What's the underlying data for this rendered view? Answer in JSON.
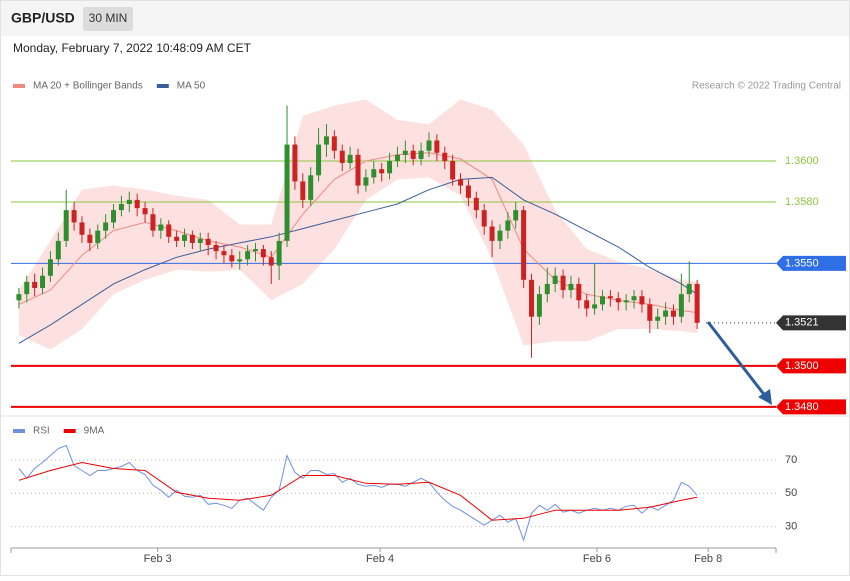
{
  "header": {
    "symbol": "GBP/USD",
    "timeframe": "30 MIN",
    "timestamp": "Monday, February 7, 2022 10:48:09 AM CET"
  },
  "chart_data": [
    {
      "type": "candlestick",
      "source": "Research © 2022 Trading Central",
      "xlim": [
        -1,
        96
      ],
      "ylim": [
        1.3477,
        1.363
      ],
      "up_color": "#2f8f2f",
      "down_color": "#cc2222",
      "candles": {
        "open": [
          1.3532,
          1.3535,
          1.3541,
          1.3538,
          1.3544,
          1.3552,
          1.3561,
          1.3576,
          1.357,
          1.3564,
          1.356,
          1.3566,
          1.357,
          1.3576,
          1.3579,
          1.3581,
          1.3577,
          1.3574,
          1.3566,
          1.3569,
          1.3563,
          1.3561,
          1.3564,
          1.356,
          1.3562,
          1.3559,
          1.3556,
          1.3554,
          1.3551,
          1.3552,
          1.3556,
          1.3557,
          1.3553,
          1.3549,
          1.3561,
          1.3608,
          1.359,
          1.3581,
          1.3593,
          1.3608,
          1.3612,
          1.3605,
          1.3599,
          1.3603,
          1.3588,
          1.3592,
          1.3596,
          1.3594,
          1.36,
          1.3603,
          1.3605,
          1.3601,
          1.3605,
          1.361,
          1.3604,
          1.36,
          1.3591,
          1.3588,
          1.3582,
          1.3576,
          1.3568,
          1.3561,
          1.3566,
          1.3571,
          1.3576,
          1.3542,
          1.3524,
          1.3535,
          1.354,
          1.3544,
          1.3537,
          1.354,
          1.3532,
          1.3528,
          1.353,
          1.3534,
          1.3533,
          1.3531,
          1.3532,
          1.3534,
          1.353,
          1.3522,
          1.3524,
          1.3527,
          1.3524,
          1.3535,
          1.354
        ],
        "high": [
          1.3538,
          1.3544,
          1.3545,
          1.3548,
          1.3556,
          1.3565,
          1.3586,
          1.358,
          1.3573,
          1.3567,
          1.3569,
          1.3574,
          1.3579,
          1.3583,
          1.3585,
          1.3584,
          1.358,
          1.3577,
          1.3572,
          1.3571,
          1.3566,
          1.3567,
          1.3566,
          1.3565,
          1.3565,
          1.3561,
          1.3559,
          1.3557,
          1.3556,
          1.3559,
          1.356,
          1.3559,
          1.3556,
          1.3565,
          1.3627,
          1.3612,
          1.3594,
          1.3597,
          1.3616,
          1.3618,
          1.3615,
          1.3608,
          1.3607,
          1.3606,
          1.3596,
          1.36,
          1.3599,
          1.3604,
          1.3607,
          1.361,
          1.3608,
          1.3609,
          1.3614,
          1.3613,
          1.3607,
          1.3603,
          1.3594,
          1.3591,
          1.3585,
          1.3579,
          1.3571,
          1.3569,
          1.3575,
          1.358,
          1.3578,
          1.3545,
          1.3539,
          1.3548,
          1.3548,
          1.3547,
          1.3544,
          1.3543,
          1.3535,
          1.355,
          1.3537,
          1.3537,
          1.3536,
          1.3535,
          1.3537,
          1.3537,
          1.3533,
          1.3528,
          1.3531,
          1.353,
          1.3545,
          1.3551,
          1.3542
        ],
        "low": [
          1.3528,
          1.3531,
          1.3534,
          1.3535,
          1.3541,
          1.3549,
          1.3558,
          1.3566,
          1.356,
          1.3556,
          1.3557,
          1.3562,
          1.3567,
          1.3573,
          1.3575,
          1.3573,
          1.357,
          1.3563,
          1.3562,
          1.356,
          1.3558,
          1.3558,
          1.3557,
          1.3556,
          1.3554,
          1.3552,
          1.355,
          1.3548,
          1.3547,
          1.3549,
          1.3551,
          1.3549,
          1.354,
          1.3542,
          1.3558,
          1.3586,
          1.3577,
          1.3578,
          1.359,
          1.3602,
          1.3601,
          1.3595,
          1.3596,
          1.3584,
          1.3585,
          1.3589,
          1.359,
          1.3591,
          1.3597,
          1.3599,
          1.3598,
          1.3598,
          1.3602,
          1.36,
          1.3596,
          1.3588,
          1.3584,
          1.3578,
          1.3572,
          1.3564,
          1.3553,
          1.3557,
          1.3562,
          1.3567,
          1.3538,
          1.3504,
          1.352,
          1.3531,
          1.3536,
          1.3533,
          1.3533,
          1.3528,
          1.3524,
          1.3525,
          1.3527,
          1.3529,
          1.3527,
          1.3527,
          1.3528,
          1.3526,
          1.3516,
          1.3518,
          1.352,
          1.352,
          1.3521,
          1.3531,
          1.3518
        ],
        "close": [
          1.3535,
          1.3541,
          1.3538,
          1.3544,
          1.3552,
          1.3561,
          1.3576,
          1.357,
          1.3564,
          1.356,
          1.3566,
          1.357,
          1.3576,
          1.3579,
          1.3581,
          1.3577,
          1.3574,
          1.3566,
          1.3569,
          1.3563,
          1.3561,
          1.3564,
          1.356,
          1.3562,
          1.3559,
          1.3556,
          1.3554,
          1.3551,
          1.3552,
          1.3556,
          1.3557,
          1.3553,
          1.3549,
          1.3561,
          1.3608,
          1.359,
          1.3581,
          1.3593,
          1.3608,
          1.3612,
          1.3605,
          1.3599,
          1.3603,
          1.3588,
          1.3592,
          1.3596,
          1.3594,
          1.36,
          1.3603,
          1.3605,
          1.3601,
          1.3605,
          1.361,
          1.3604,
          1.36,
          1.3591,
          1.3588,
          1.3582,
          1.3576,
          1.3568,
          1.3561,
          1.3566,
          1.3571,
          1.3576,
          1.3542,
          1.3524,
          1.3535,
          1.354,
          1.3544,
          1.3537,
          1.354,
          1.3532,
          1.3528,
          1.353,
          1.3534,
          1.3533,
          1.3531,
          1.3532,
          1.3534,
          1.353,
          1.3522,
          1.3524,
          1.3527,
          1.3524,
          1.3535,
          1.354,
          1.3521
        ]
      },
      "series": [
        {
          "name": "MA 20 + Bollinger Bands",
          "color": "#f08a80",
          "band_color": "#fde0e0",
          "x": [
            0,
            4,
            8,
            12,
            16,
            20,
            24,
            28,
            32,
            36,
            40,
            44,
            48,
            52,
            56,
            60,
            64,
            68,
            72,
            76,
            80,
            84,
            86
          ],
          "values": [
            1.353,
            1.3537,
            1.3554,
            1.3566,
            1.357,
            1.3566,
            1.3561,
            1.3558,
            1.3553,
            1.3574,
            1.3591,
            1.36,
            1.3603,
            1.3604,
            1.3601,
            1.3591,
            1.3557,
            1.3542,
            1.3535,
            1.3532,
            1.353,
            1.3527,
            1.3526
          ],
          "upper": [
            1.3537,
            1.3561,
            1.3586,
            1.3588,
            1.3586,
            1.3583,
            1.3581,
            1.3569,
            1.3569,
            1.3622,
            1.3627,
            1.363,
            1.362,
            1.3618,
            1.363,
            1.3625,
            1.3608,
            1.3576,
            1.3557,
            1.3551,
            1.3547,
            1.3542,
            1.3541
          ],
          "lower": [
            1.3515,
            1.3508,
            1.3518,
            1.3535,
            1.3542,
            1.3547,
            1.3546,
            1.3547,
            1.3532,
            1.354,
            1.3557,
            1.3581,
            1.3591,
            1.3592,
            1.3583,
            1.3552,
            1.351,
            1.3512,
            1.3512,
            1.3518,
            1.3518,
            1.3517,
            1.3516
          ]
        },
        {
          "name": "MA 50",
          "color": "#3a5f9c",
          "x": [
            0,
            4,
            8,
            12,
            16,
            20,
            24,
            28,
            32,
            36,
            40,
            44,
            48,
            52,
            56,
            60,
            64,
            68,
            72,
            76,
            80,
            84,
            86
          ],
          "values": [
            1.3511,
            1.352,
            1.353,
            1.354,
            1.3547,
            1.3553,
            1.3557,
            1.356,
            1.3563,
            1.3567,
            1.3571,
            1.3575,
            1.3579,
            1.3586,
            1.3591,
            1.3592,
            1.3581,
            1.3574,
            1.3566,
            1.3558,
            1.3548,
            1.354,
            1.3535
          ]
        }
      ],
      "levels": [
        {
          "value": 1.36,
          "label": "1.3600",
          "color": "#8dc63f",
          "style": "plain"
        },
        {
          "value": 1.358,
          "label": "1.3580",
          "color": "#8dc63f",
          "style": "plain"
        },
        {
          "value": 1.355,
          "label": "1.3550",
          "color": "#2f6fe6",
          "style": "box"
        },
        {
          "value": 1.3521,
          "color": "#333333",
          "style": "current"
        },
        {
          "value": 1.35,
          "label": "1.3500",
          "color": "#ee0000",
          "style": "box"
        },
        {
          "value": 1.348,
          "label": "1.3480",
          "color": "#ee0000",
          "style": "box"
        }
      ]
    },
    {
      "type": "line",
      "xlim": [
        -1,
        96
      ],
      "ylim": [
        19,
        82
      ],
      "yticks": [
        30,
        50,
        70
      ],
      "xticks": [
        {
          "value": 17.6,
          "label": "Feb 3"
        },
        {
          "value": 45.8,
          "label": "Feb 4"
        },
        {
          "value": 73.3,
          "label": "Feb 6"
        },
        {
          "value": 87.4,
          "label": "Feb 8"
        }
      ],
      "series": [
        {
          "name": "RSI",
          "color": "#7090e0",
          "values": [
            64.9,
            59,
            65,
            68.5,
            72.7,
            76.9,
            78.7,
            66.7,
            63.7,
            60.7,
            63.7,
            63.7,
            64.9,
            66.1,
            68.5,
            63.7,
            61.3,
            54.8,
            51.8,
            47.6,
            51.8,
            48.2,
            47.6,
            48.8,
            43.4,
            44,
            42.8,
            41,
            45.8,
            47,
            43.4,
            39.9,
            47.6,
            51.8,
            72.7,
            62.5,
            59,
            63.7,
            63.7,
            61.3,
            61.9,
            56.6,
            59,
            55.4,
            54.2,
            54.8,
            53.6,
            55.4,
            55.4,
            54.2,
            56.6,
            59,
            56.6,
            50.6,
            45.8,
            42.2,
            39.9,
            36.9,
            33.9,
            30.9,
            33.9,
            36.9,
            32.7,
            35,
            21.9,
            38.1,
            42.8,
            39.9,
            43.4,
            38.7,
            39.9,
            38.1,
            39.9,
            41,
            39.9,
            41,
            39.9,
            42.2,
            42.8,
            38.1,
            42.2,
            39.9,
            42.8,
            45.8,
            56.6,
            54.2,
            48.8
          ]
        },
        {
          "name": "9MA",
          "color": "#ee0000",
          "x": [
            0,
            4,
            8,
            12,
            16,
            20,
            24,
            28,
            32,
            36,
            40,
            44,
            48,
            52,
            56,
            60,
            64,
            68,
            72,
            76,
            80,
            84,
            86
          ],
          "values": [
            57.8,
            63.7,
            68.5,
            64.9,
            63.7,
            50.6,
            47,
            45.8,
            48.8,
            60.7,
            60.7,
            56,
            55.4,
            56.6,
            48.8,
            33.9,
            35,
            39.9,
            39.9,
            39.9,
            41.6,
            45.8,
            47.6
          ]
        }
      ]
    }
  ]
}
